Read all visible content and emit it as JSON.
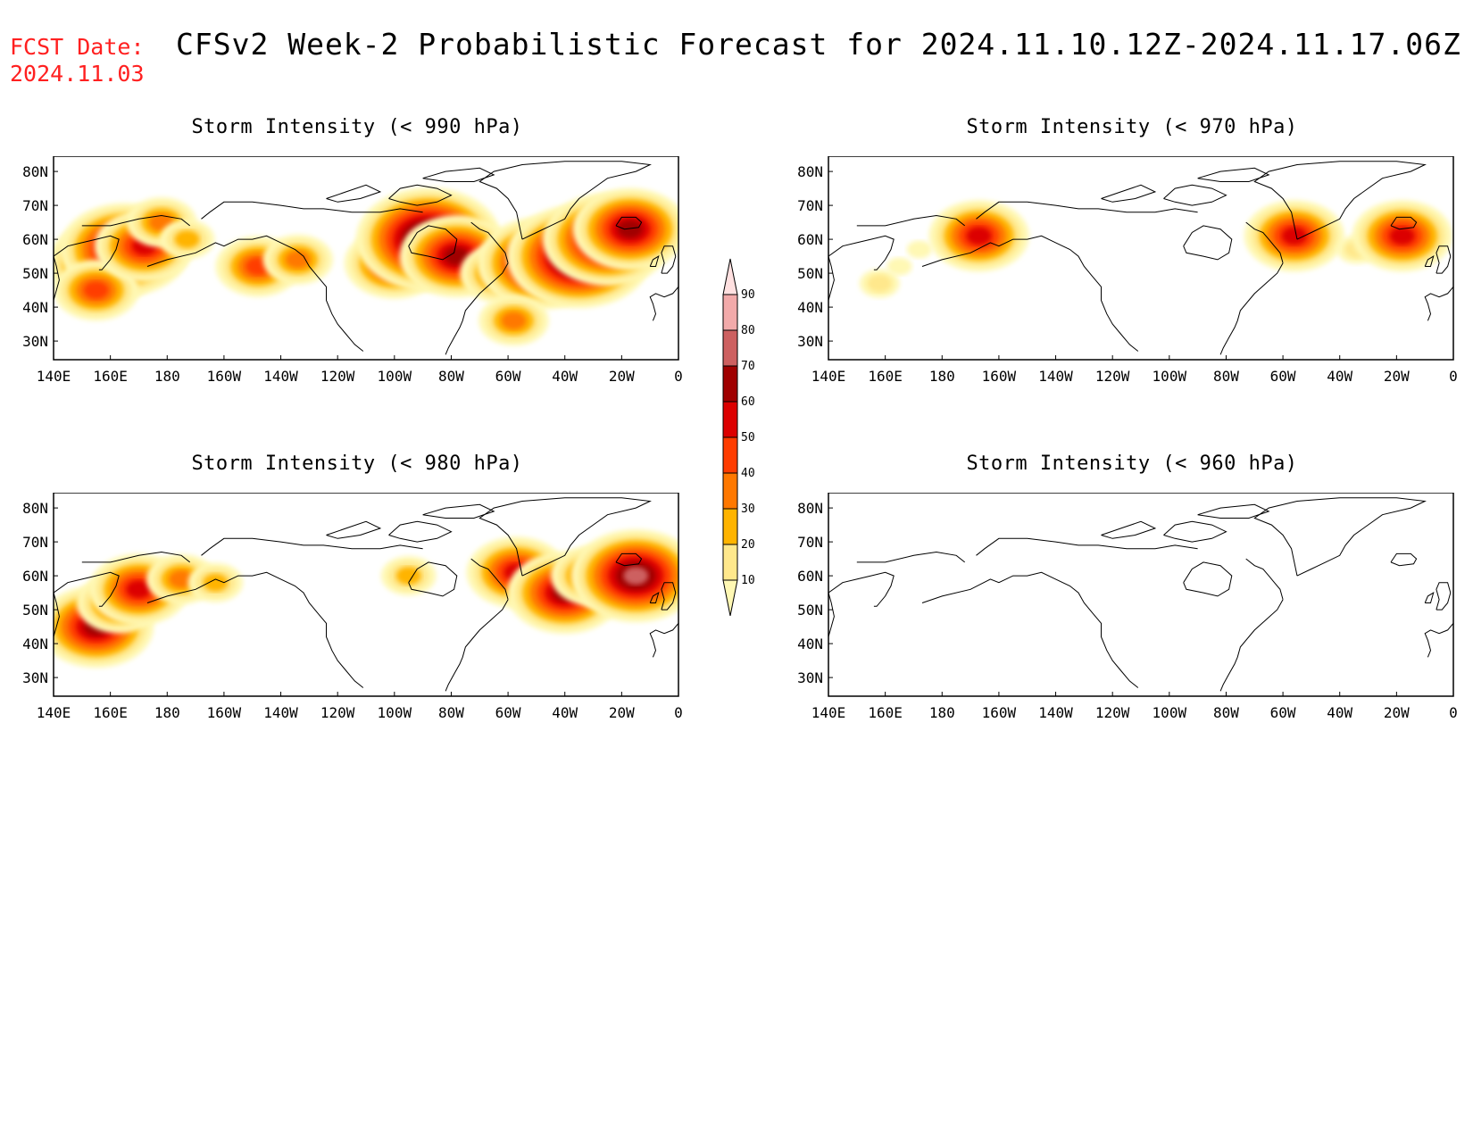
{
  "header": {
    "fcst_label": "FCST Date:",
    "fcst_date": "2024.11.03",
    "title": "CFSv2 Week-2 Probabilistic Forecast for 2024.11.10.12Z-2024.11.17.06Z"
  },
  "axes": {
    "lon_labels": [
      "140E",
      "160E",
      "180",
      "160W",
      "140W",
      "120W",
      "100W",
      "80W",
      "60W",
      "40W",
      "20W",
      "0"
    ],
    "lat_labels": [
      "80N",
      "70N",
      "60N",
      "50N",
      "40N",
      "30N"
    ]
  },
  "colorbar": {
    "labels": [
      "10",
      "20",
      "30",
      "40",
      "50",
      "60",
      "70",
      "80",
      "90"
    ],
    "colors": [
      "#fff8b4",
      "#ffe88c",
      "#ffb400",
      "#ff7800",
      "#ff3c00",
      "#dc0000",
      "#a00000",
      "#cd6060",
      "#f2aaaa",
      "#ffe0e0"
    ]
  },
  "panels": [
    {
      "title": "Storm Intensity (< 990 hPa)",
      "blobs": [
        {
          "lon": 158,
          "lat": 53,
          "level": 6
        },
        {
          "lon": 165,
          "lat": 57,
          "level": 7
        },
        {
          "lon": 155,
          "lat": 45,
          "level": 4
        },
        {
          "lon": 172,
          "lat": 58,
          "level": 5
        },
        {
          "lon": 178,
          "lat": 65,
          "level": 3
        },
        {
          "lon": 187,
          "lat": 60,
          "level": 2
        },
        {
          "lon": 212,
          "lat": 52,
          "level": 4
        },
        {
          "lon": 226,
          "lat": 54,
          "level": 3
        },
        {
          "lon": 260,
          "lat": 53,
          "level": 5
        },
        {
          "lon": 272,
          "lat": 60,
          "level": 8
        },
        {
          "lon": 282,
          "lat": 55,
          "level": 6
        },
        {
          "lon": 298,
          "lat": 50,
          "level": 4
        },
        {
          "lon": 312,
          "lat": 53,
          "level": 7
        },
        {
          "lon": 325,
          "lat": 55,
          "level": 8
        },
        {
          "lon": 335,
          "lat": 60,
          "level": 7
        },
        {
          "lon": 343,
          "lat": 63,
          "level": 6
        },
        {
          "lon": 302,
          "lat": 36,
          "level": 3
        }
      ]
    },
    {
      "title": "Storm Intensity (< 970 hPa)",
      "blobs": [
        {
          "lon": 158,
          "lat": 47,
          "level": 1
        },
        {
          "lon": 165,
          "lat": 52,
          "level": 0
        },
        {
          "lon": 172,
          "lat": 57,
          "level": 0
        },
        {
          "lon": 193,
          "lat": 61,
          "level": 5
        },
        {
          "lon": 304,
          "lat": 61,
          "level": 5
        },
        {
          "lon": 326,
          "lat": 57,
          "level": 1
        },
        {
          "lon": 342,
          "lat": 61,
          "level": 5
        }
      ]
    },
    {
      "title": "Storm Intensity (< 980 hPa)",
      "blobs": [
        {
          "lon": 155,
          "lat": 45,
          "level": 6
        },
        {
          "lon": 163,
          "lat": 52,
          "level": 4
        },
        {
          "lon": 170,
          "lat": 56,
          "level": 5
        },
        {
          "lon": 185,
          "lat": 59,
          "level": 3
        },
        {
          "lon": 197,
          "lat": 58,
          "level": 2
        },
        {
          "lon": 265,
          "lat": 60,
          "level": 2
        },
        {
          "lon": 303,
          "lat": 61,
          "level": 5
        },
        {
          "lon": 320,
          "lat": 55,
          "level": 6
        },
        {
          "lon": 330,
          "lat": 60,
          "level": 4
        },
        {
          "lon": 345,
          "lat": 60,
          "level": 7
        }
      ]
    },
    {
      "title": "Storm Intensity (< 960 hPa)",
      "blobs": []
    }
  ]
}
